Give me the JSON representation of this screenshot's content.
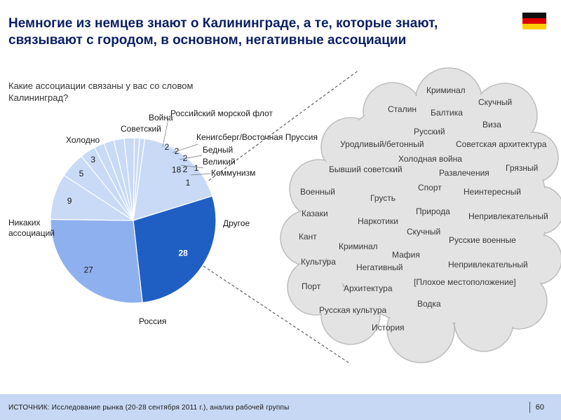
{
  "title": "Немногие из немцев знают о Калининграде, а те, которые знают, связывают с городом, в основном, негативные ассоциации",
  "subtitle": "Какие ассоциации связаны у вас со словом Калининград?",
  "flag": {
    "name": "germany-flag",
    "colors": [
      "#111111",
      "#dd0000",
      "#ffce00"
    ]
  },
  "colors": {
    "russia": "#1f5fc4",
    "none": "#8fb0ef",
    "light": "#c8daf6",
    "cloud": "#e3e3e3",
    "cloud_edge": "#bdbdbd",
    "text": "#1a1a1a"
  },
  "chart_data": {
    "type": "pie",
    "title": "Какие ассоциации связаны у вас со словом Калининград?",
    "slices": [
      {
        "label": "Россия",
        "value": 28
      },
      {
        "label": "Никаких ассоциаций",
        "value": 27
      },
      {
        "label": "Холодно",
        "value": 9
      },
      {
        "label": "Советский",
        "value": 5
      },
      {
        "label": "Война",
        "value": 3
      },
      {
        "label": "Российский морской флот",
        "value": 2
      },
      {
        "label": "Кенигсберг/Восточная Пруссия",
        "value": 2
      },
      {
        "label": "Бедный",
        "value": 2
      },
      {
        "label": "Великий",
        "value": 2
      },
      {
        "label": "Коммунизм",
        "value": 1
      },
      {
        "label": "",
        "value": 1
      },
      {
        "label": "Другое",
        "value": 18
      }
    ]
  },
  "other_words": [
    "Криминал",
    "Сталин",
    "Балтика",
    "Скучный",
    "Русский",
    "Виза",
    "Уродливый/бетонный",
    "Советская архитектура",
    "Холодная война",
    "Бывший советский",
    "Развлечения",
    "Грязный",
    "Военный",
    "Грусть",
    "Спорт",
    "Неинтересный",
    "Казаки",
    "Наркотики",
    "Природа",
    "Непривлекательный",
    "Кант",
    "Скучный",
    "Русские военные",
    "Криминал",
    "Мафия",
    "Культура",
    "Негативный",
    "Непривлекательный",
    "Порт",
    "Архитектура",
    "[Плохое местоположение]",
    "Русская культура",
    "Водка",
    "История"
  ],
  "footer": {
    "source": "ИСТОЧНИК: Исследование рынка (20-28 сентября 2011 г.), анализ рабочей группы",
    "page": "60"
  }
}
